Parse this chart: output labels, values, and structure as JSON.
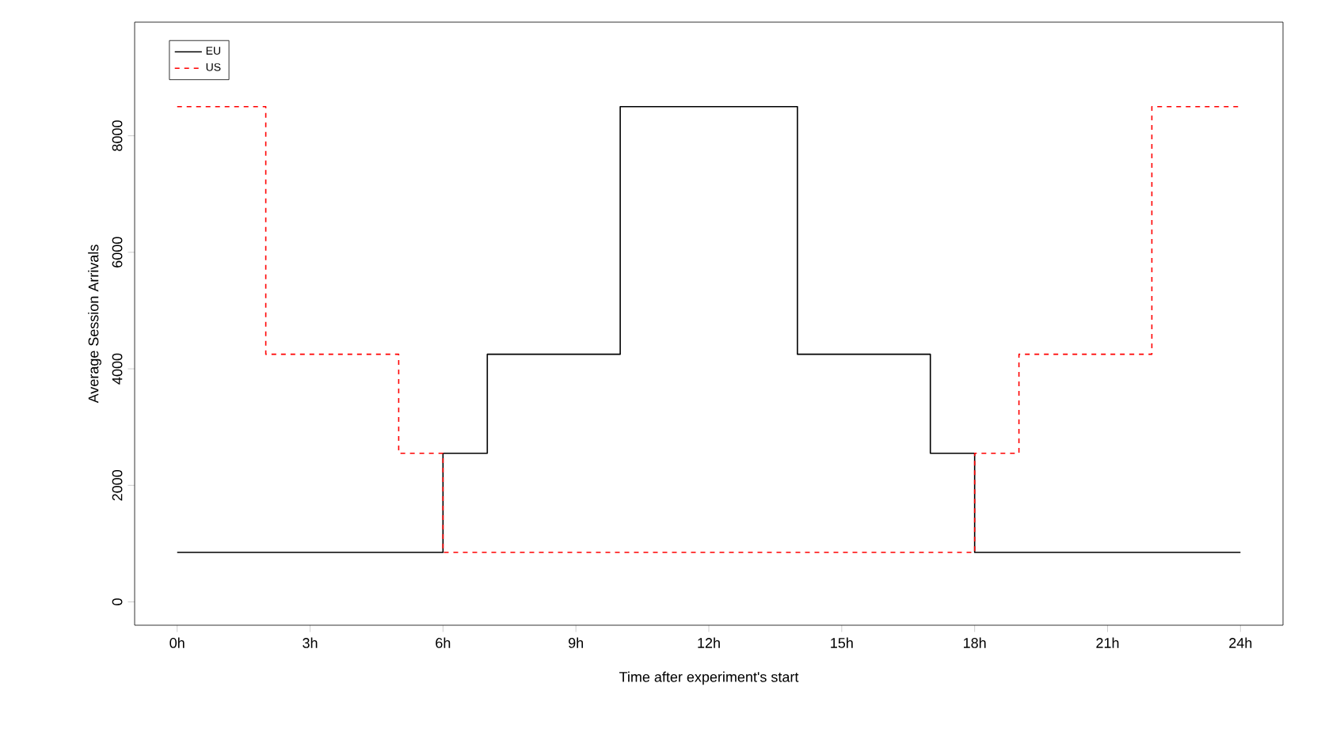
{
  "chart_data": {
    "type": "step",
    "xlabel": "Time after experiment's start",
    "ylabel": "Average Session Arrivals",
    "series": [
      {
        "name": "EU",
        "color": "#000000",
        "line_style": "solid",
        "x": [
          0,
          6,
          7,
          10,
          14,
          17,
          18,
          24
        ],
        "values": [
          850,
          2550,
          4250,
          8500,
          4250,
          2550,
          850,
          850
        ]
      },
      {
        "name": "US",
        "color": "#ff0000",
        "line_style": "dashed",
        "x": [
          0,
          2,
          5,
          6,
          18,
          19,
          22,
          24
        ],
        "values": [
          8500,
          4250,
          2550,
          850,
          2550,
          4250,
          8500,
          8500
        ]
      }
    ],
    "xlim": [
      -0.96,
      24.96
    ],
    "ylim": [
      -400,
      9950
    ],
    "xticks": [
      {
        "value": 0,
        "label": "0h"
      },
      {
        "value": 3,
        "label": "3h"
      },
      {
        "value": 6,
        "label": "6h"
      },
      {
        "value": 9,
        "label": "9h"
      },
      {
        "value": 12,
        "label": "12h"
      },
      {
        "value": 15,
        "label": "15h"
      },
      {
        "value": 18,
        "label": "18h"
      },
      {
        "value": 21,
        "label": "21h"
      },
      {
        "value": 24,
        "label": "24h"
      }
    ],
    "yticks": [
      0,
      2000,
      4000,
      6000,
      8000
    ],
    "legend": "top left",
    "grid": false,
    "marker": "none"
  }
}
